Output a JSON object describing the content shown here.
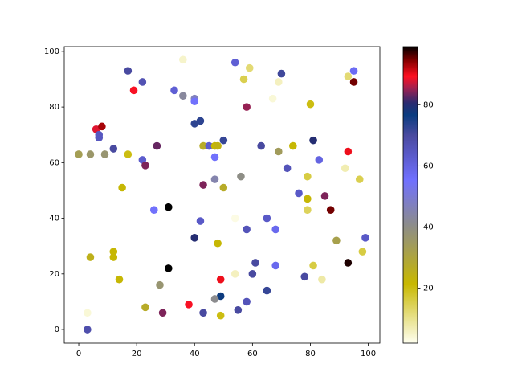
{
  "chart_data": {
    "type": "scatter",
    "x": [
      3,
      3,
      4,
      0,
      4,
      9,
      6,
      8,
      7,
      7,
      12,
      12,
      12,
      14,
      15,
      17,
      17,
      19,
      22,
      22,
      23,
      27,
      26,
      23,
      28,
      29,
      31,
      31,
      33,
      36,
      36,
      40,
      40,
      40,
      42,
      40,
      42,
      38,
      43,
      43,
      45,
      43,
      47,
      47,
      47,
      48,
      50,
      48,
      50,
      49,
      49,
      47,
      49,
      54,
      57,
      59,
      58,
      56,
      54,
      58,
      61,
      60,
      54,
      55,
      58,
      65,
      65,
      68,
      68,
      63,
      69,
      70,
      69,
      67,
      72,
      74,
      76,
      78,
      79,
      79,
      79,
      80,
      81,
      81,
      83,
      84,
      85,
      87,
      89,
      92,
      93,
      93,
      95,
      95,
      93,
      97,
      98,
      99
    ],
    "y": [
      0,
      6,
      26,
      63,
      63,
      63,
      72,
      73,
      69,
      70,
      65,
      28,
      26,
      18,
      51,
      63,
      93,
      86,
      89,
      61,
      59,
      66,
      43,
      8,
      16,
      6,
      44,
      22,
      86,
      97,
      84,
      83,
      82,
      74,
      75,
      33,
      39,
      9,
      6,
      66,
      66,
      52,
      62,
      54,
      66,
      66,
      68,
      31,
      51,
      18,
      12,
      11,
      5,
      96,
      90,
      94,
      80,
      55,
      40,
      36,
      24,
      20,
      20,
      7,
      10,
      14,
      40,
      36,
      23,
      66,
      64,
      92,
      89,
      83,
      58,
      66,
      49,
      19,
      47,
      43,
      55,
      81,
      68,
      23,
      61,
      18,
      48,
      43,
      32,
      58,
      64,
      91,
      93,
      89,
      24,
      54,
      28,
      33
    ],
    "c": [
      68,
      4,
      25,
      33,
      36,
      37,
      88,
      93,
      65,
      65,
      70,
      22,
      22,
      22,
      22,
      20,
      70,
      89,
      67,
      63,
      84,
      83,
      55,
      27,
      37,
      84,
      99,
      99,
      62,
      5,
      43,
      47,
      55,
      73,
      73,
      80,
      64,
      89,
      70,
      27,
      63,
      84,
      55,
      45,
      22,
      24,
      72,
      22,
      27,
      90,
      77,
      41,
      20,
      62,
      15,
      12,
      85,
      40,
      3,
      66,
      70,
      70,
      6,
      70,
      66,
      72,
      64,
      58,
      58,
      70,
      34,
      71,
      6,
      4,
      66,
      22,
      64,
      70,
      22,
      14,
      16,
      20,
      80,
      16,
      60,
      8,
      84,
      95,
      32,
      7,
      90,
      12,
      57,
      95,
      98,
      15,
      16,
      64
    ],
    "xlim": [
      -5,
      104
    ],
    "ylim": [
      -4.9,
      101.7
    ],
    "xticks": [
      0,
      20,
      40,
      60,
      80,
      100
    ],
    "yticks": [
      0,
      20,
      40,
      60,
      80,
      100
    ],
    "clim": [
      2,
      99
    ],
    "cticks": [
      20,
      40,
      60,
      80
    ],
    "colormap": [
      [
        0,
        "#fffff0"
      ],
      [
        0.2,
        "#c8b800"
      ],
      [
        0.4,
        "#8c8c8c"
      ],
      [
        0.55,
        "#7070ff"
      ],
      [
        0.7,
        "#4a4aa0"
      ],
      [
        0.77,
        "#0a3c80"
      ],
      [
        0.81,
        "#2a2a70"
      ],
      [
        0.86,
        "#a02050"
      ],
      [
        0.9,
        "#ff1020"
      ],
      [
        0.95,
        "#8b0000"
      ],
      [
        1,
        "#000000"
      ]
    ]
  }
}
